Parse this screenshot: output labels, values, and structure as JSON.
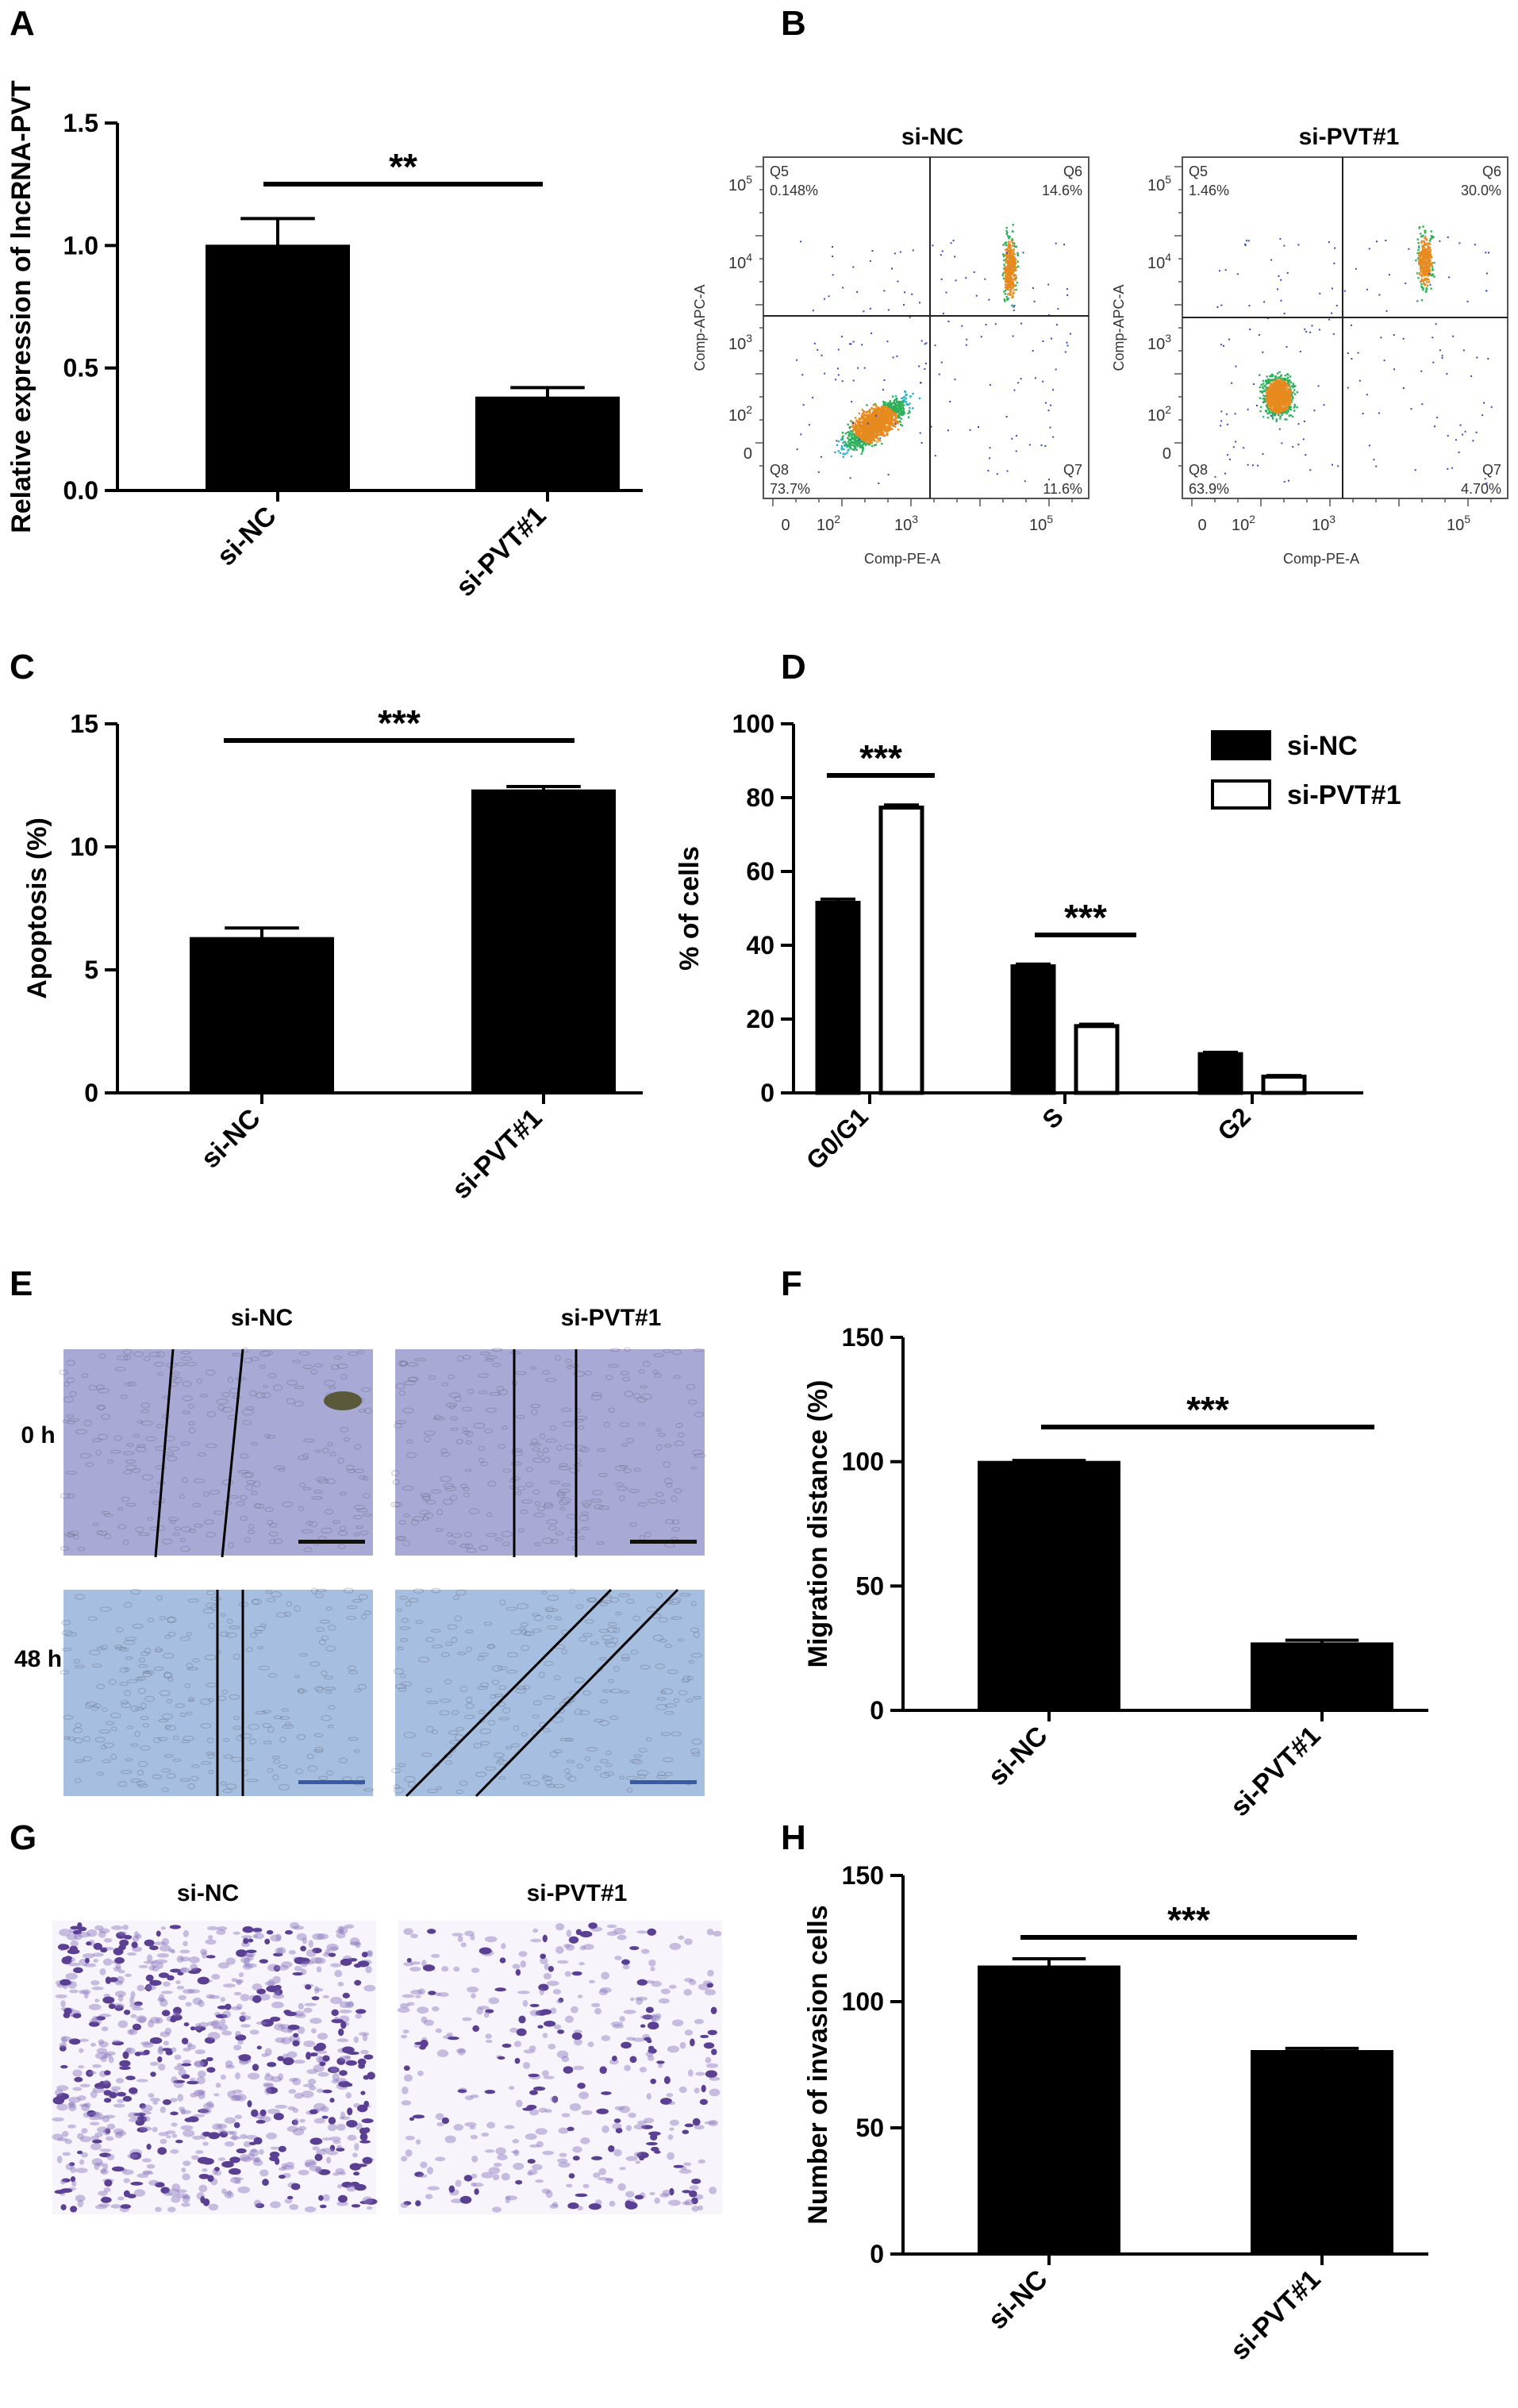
{
  "panel_letters": [
    "A",
    "B",
    "C",
    "D",
    "E",
    "F",
    "G",
    "H"
  ],
  "flow": {
    "x_axis_label": "Comp-PE-A",
    "y_axis_label": "Comp-APC-A",
    "x_ticks": [
      "0",
      "10",
      "10",
      "10"
    ],
    "x_tick_exponents": [
      "",
      "2",
      "3",
      "5"
    ],
    "y_ticks": [
      "10",
      "10",
      "10",
      "10",
      "0"
    ],
    "y_tick_exponents": [
      "5",
      "4",
      "3",
      "2",
      ""
    ],
    "plots": [
      {
        "title": "si-NC",
        "quadrants": {
          "Q5": "0.148%",
          "Q6": "14.6%",
          "Q8": "73.7%",
          "Q7": "11.6%"
        }
      },
      {
        "title": "si-PVT#1",
        "quadrants": {
          "Q5": "1.46%",
          "Q6": "30.0%",
          "Q8": "63.9%",
          "Q7": "4.70%"
        }
      }
    ]
  },
  "micrographs": {
    "wound_titles": [
      "si-NC",
      "si-PVT#1"
    ],
    "wound_rows": [
      "0 h",
      "48 h"
    ],
    "invasion_titles": [
      "si-NC",
      "si-PVT#1"
    ],
    "colors": {
      "wound_0h": "#a9a9d6",
      "wound_48h": "#a6bfe0",
      "invasion_stain": "#5a3f93"
    }
  },
  "chart_data": [
    {
      "panel": "A",
      "type": "bar",
      "categories": [
        "si-NC",
        "si-PVT#1"
      ],
      "values": [
        1.0,
        0.38
      ],
      "errors": [
        0.11,
        0.04
      ],
      "ylabel": "Relative expression of lncRNA-PVT",
      "ylim": [
        0,
        1.5
      ],
      "yticks": [
        "0.0",
        "0.5",
        "1.0",
        "1.5"
      ],
      "significance": "**"
    },
    {
      "panel": "C",
      "type": "bar",
      "categories": [
        "si-NC",
        "si-PVT#1"
      ],
      "values": [
        6.3,
        12.3
      ],
      "errors": [
        0.4,
        0.15
      ],
      "ylabel": "Apoptosis (%)",
      "ylim": [
        0,
        15
      ],
      "yticks": [
        "0",
        "5",
        "10",
        "15"
      ],
      "significance": "***"
    },
    {
      "panel": "D",
      "type": "bar",
      "categories": [
        "G0/G1",
        "S",
        "G2"
      ],
      "series": [
        {
          "name": "si-NC",
          "values": [
            51.5,
            34.3,
            10.5
          ],
          "errors": [
            1.0,
            0.6,
            0.5
          ]
        },
        {
          "name": "si-PVT#1",
          "values": [
            77.3,
            18.1,
            4.4
          ],
          "errors": [
            0.7,
            0.5,
            0.3
          ]
        }
      ],
      "ylabel": "% of cells",
      "ylim": [
        0,
        100
      ],
      "yticks": [
        "0",
        "20",
        "40",
        "60",
        "80",
        "100"
      ],
      "significance": [
        "***",
        "***"
      ],
      "legend": "top-right"
    },
    {
      "panel": "F",
      "type": "bar",
      "categories": [
        "si-NC",
        "si-PVT#1"
      ],
      "values": [
        100,
        27
      ],
      "errors": [
        0.5,
        1.2
      ],
      "ylabel": "Migration distance (%)",
      "ylim": [
        0,
        150
      ],
      "yticks": [
        "0",
        "50",
        "100",
        "150"
      ],
      "significance": "***"
    },
    {
      "panel": "H",
      "type": "bar",
      "categories": [
        "si-NC",
        "si-PVT#1"
      ],
      "values": [
        114,
        80.5
      ],
      "errors": [
        3,
        1
      ],
      "ylabel": "Number of invasion cells",
      "ylim": [
        0,
        150
      ],
      "yticks": [
        "0",
        "50",
        "100",
        "150"
      ],
      "significance": "***"
    }
  ]
}
